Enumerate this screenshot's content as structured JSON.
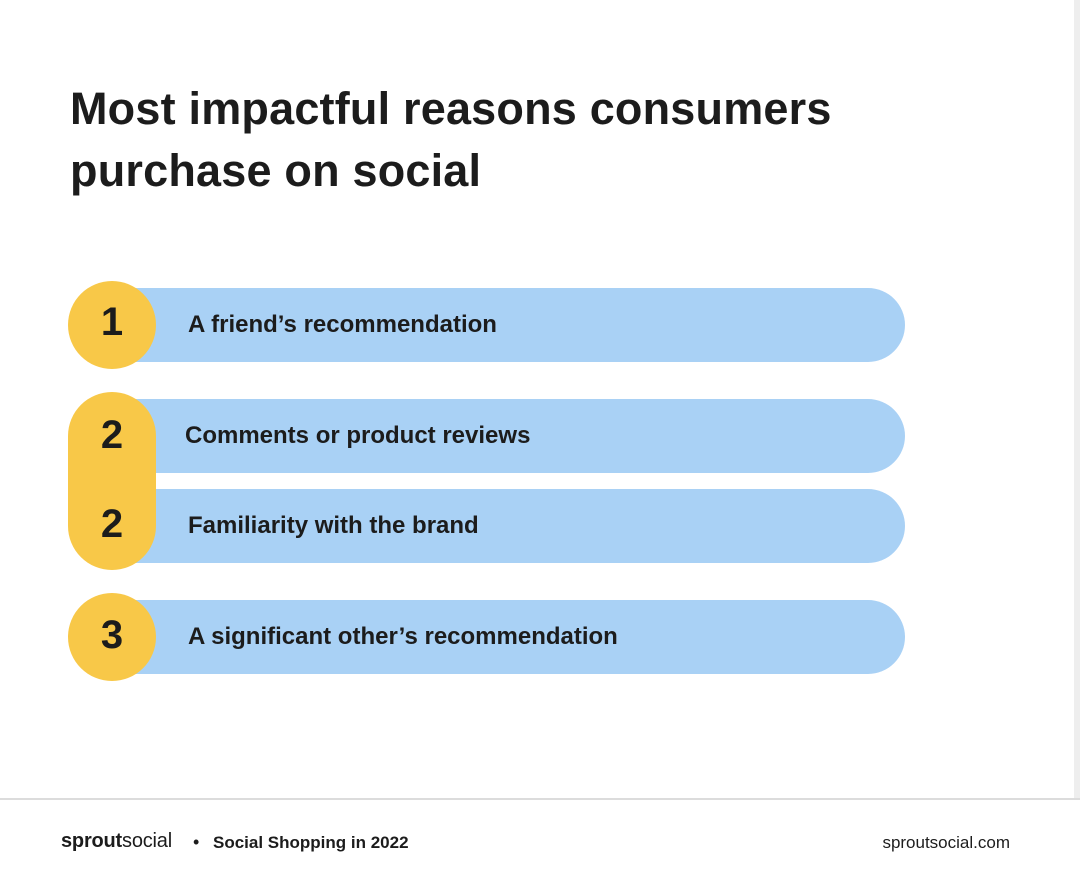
{
  "title": "Most impactful reasons consumers purchase on social",
  "items": [
    {
      "rank": "1",
      "label": "A friend’s recommendation"
    },
    {
      "rank": "2",
      "label": "Comments or product reviews"
    },
    {
      "rank": "2",
      "label": "Familiarity with the brand"
    },
    {
      "rank": "3",
      "label": "A significant other’s recommendation"
    }
  ],
  "footer": {
    "brand_bold": "sprout",
    "brand_light": "social",
    "separator": "•",
    "report": "Social Shopping in 2022",
    "site": "sproutsocial.com"
  },
  "colors": {
    "bar": "#a9d1f5",
    "rank_badge": "#f8c848",
    "text": "#1c1c1c",
    "background": "#ffffff"
  }
}
